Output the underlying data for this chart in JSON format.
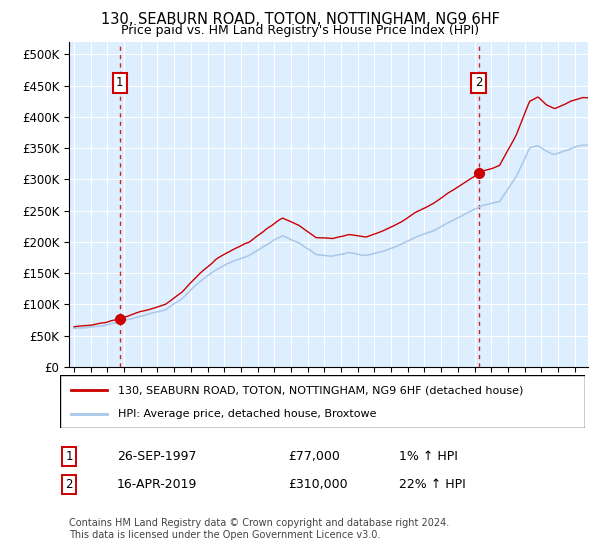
{
  "title": "130, SEABURN ROAD, TOTON, NOTTINGHAM, NG9 6HF",
  "subtitle": "Price paid vs. HM Land Registry's House Price Index (HPI)",
  "sale1_annotation": "26-SEP-1997",
  "sale1_price": 77000,
  "sale1_pct": "1%",
  "sale2_annotation": "16-APR-2019",
  "sale2_price": 310000,
  "sale2_pct": "22%",
  "legend_line1": "130, SEABURN ROAD, TOTON, NOTTINGHAM, NG9 6HF (detached house)",
  "legend_line2": "HPI: Average price, detached house, Broxtowe",
  "footer": "Contains HM Land Registry data © Crown copyright and database right 2024.\nThis data is licensed under the Open Government Licence v3.0.",
  "hpi_color": "#a8c8e8",
  "price_color": "#cc0000",
  "bg_color": "#ddeeff",
  "ylim_max": 520000,
  "yticks": [
    0,
    50000,
    100000,
    150000,
    200000,
    250000,
    300000,
    350000,
    400000,
    450000,
    500000
  ],
  "xlim_start": 1994.7,
  "xlim_end": 2025.8,
  "sale1_t": 1997.75,
  "sale2_t": 2019.25
}
